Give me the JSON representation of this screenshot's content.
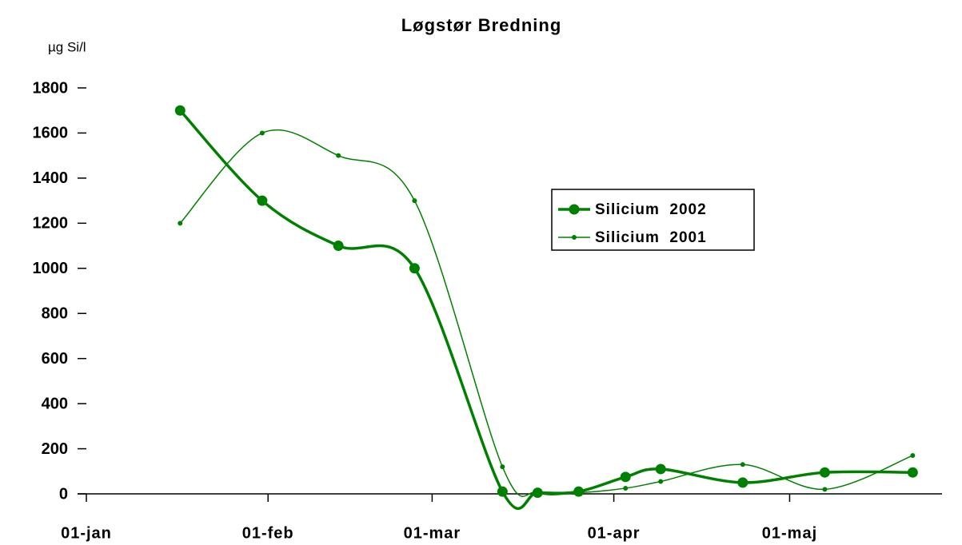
{
  "chart_data": {
    "type": "line",
    "title": "Løgstør Bredning",
    "y_label": "µg Si/l",
    "x": [
      16,
      30,
      43,
      56,
      71,
      77,
      84,
      92,
      98,
      112,
      126,
      141
    ],
    "series": [
      {
        "name": "Silicium  2002",
        "color": "#008000",
        "values": [
          1700,
          1300,
          1100,
          1000,
          10,
          5,
          10,
          75,
          110,
          50,
          95,
          95
        ]
      },
      {
        "name": "Silicium  2001",
        "color": "#008000",
        "values": [
          1200,
          1600,
          1500,
          1300,
          120,
          5,
          5,
          25,
          55,
          130,
          20,
          170
        ]
      }
    ],
    "xlim": [
      0,
      146
    ],
    "xticks": [
      {
        "value": 0,
        "label": "01-jan"
      },
      {
        "value": 31,
        "label": "01-feb"
      },
      {
        "value": 59,
        "label": "01-mar"
      },
      {
        "value": 90,
        "label": "01-apr"
      },
      {
        "value": 120,
        "label": "01-maj"
      }
    ],
    "ylim": [
      0,
      1800
    ],
    "yticks": [
      0,
      200,
      400,
      600,
      800,
      1000,
      1200,
      1400,
      1600,
      1800
    ],
    "grid": false,
    "legend": "right"
  }
}
